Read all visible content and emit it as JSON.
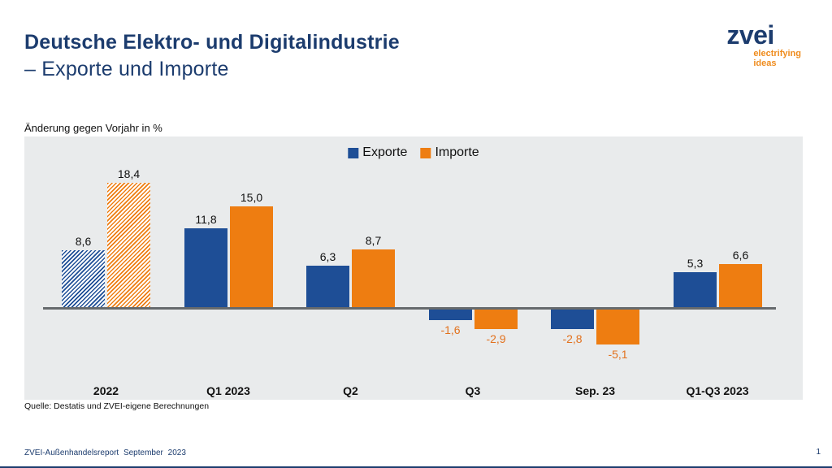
{
  "header": {
    "title_line1": "Deutsche Elektro- und Digitalindustrie",
    "title_line2": "– Exporte und Importe"
  },
  "logo": {
    "brand": "zvei",
    "tagline_line1": "electrifying",
    "tagline_line2": "ideas"
  },
  "chart_data": {
    "type": "bar",
    "title": "",
    "axis_note": "Änderung gegen Vorjahr in %",
    "categories": [
      "2022",
      "Q1 2023",
      "Q2",
      "Q3",
      "Sep. 23",
      "Q1-Q3 2023"
    ],
    "series": [
      {
        "name": "Exporte",
        "color": "#1e4e96",
        "values": [
          8.6,
          11.8,
          6.3,
          -1.6,
          -2.8,
          5.3
        ],
        "labels": [
          "8,6",
          "11,8",
          "6,3",
          "-1,6",
          "-2,8",
          "5,3"
        ]
      },
      {
        "name": "Importe",
        "color": "#ee7d11",
        "values": [
          18.4,
          15.0,
          8.7,
          -2.9,
          -5.1,
          6.6
        ],
        "labels": [
          "18,4",
          "15,0",
          "8,7",
          "-2,9",
          "-5,1",
          "6,6"
        ]
      }
    ],
    "hatched_categories": [
      "2022"
    ],
    "ylim": [
      -7,
      20
    ],
    "grid": false,
    "legend_position": "top-center",
    "positive_label_color": "#111111",
    "negative_label_color": "#e2711d"
  },
  "colors": {
    "navy": "#1c3c6e",
    "brand_orange": "#ef8c1e",
    "chart_background": "#e9ebec",
    "zero_axis": "#666a6d"
  },
  "source": "Quelle: Destatis und ZVEI-eigene Berechnungen",
  "footer": {
    "report": "ZVEI-Außenhandelsreport September 2023",
    "page": "1"
  }
}
